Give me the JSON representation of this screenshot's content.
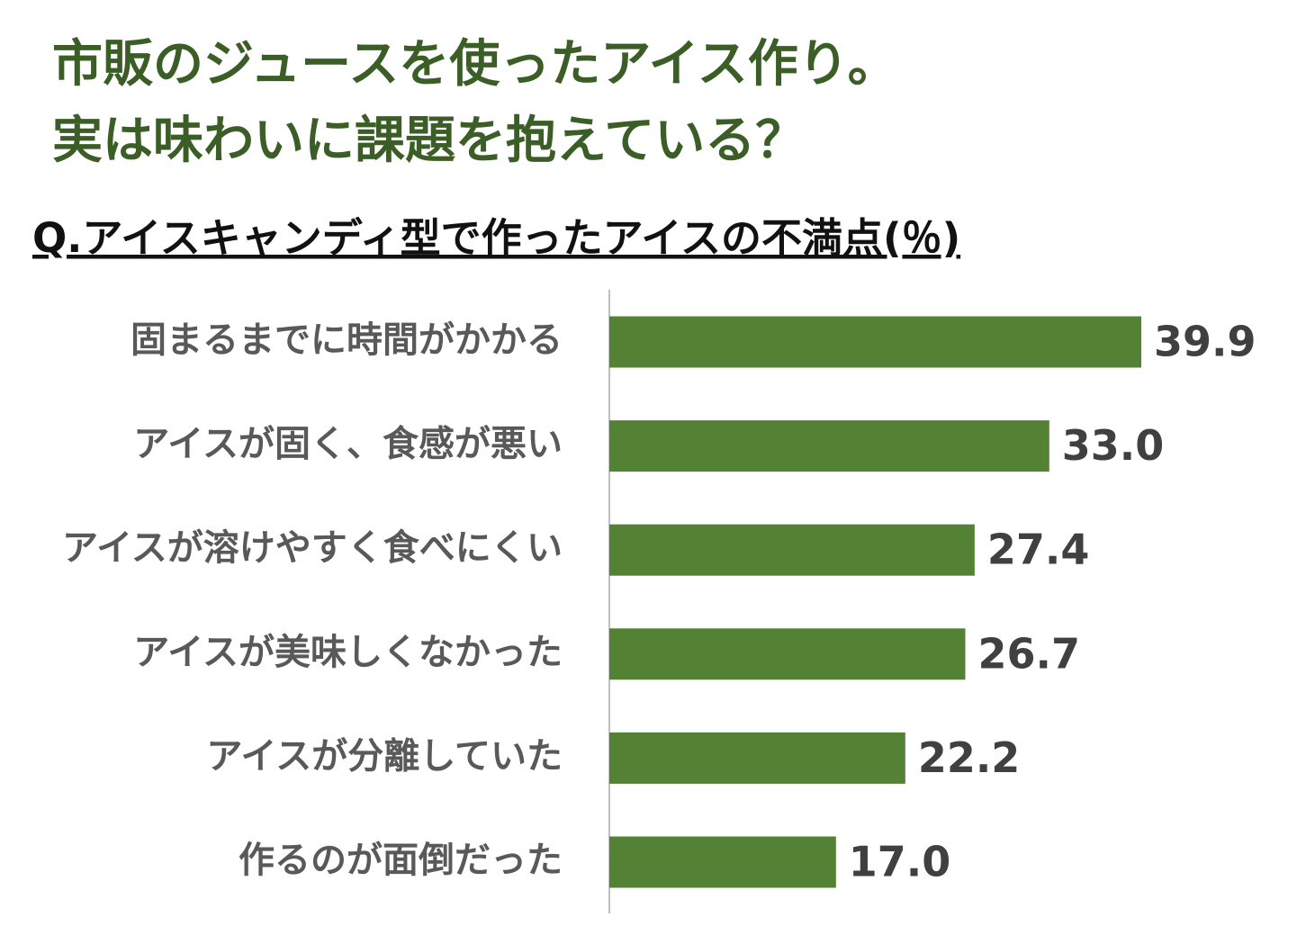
{
  "chart_data": {
    "type": "bar",
    "orientation": "horizontal",
    "title": [
      "市販のジュースを使ったアイス作り。",
      "実は味わいに課題を抱えている？"
    ],
    "subtitle": "Q.アイスキャンディ型で作ったアイスの不満点(％)",
    "categories": [
      "固まるまでに時間がかかる",
      "アイスが固く、食感が悪い",
      "アイスが溶けやすく食べにくい",
      "アイスが美味しくなかった",
      "アイスが分離していた",
      "作るのが面倒だった"
    ],
    "values": [
      39.9,
      33.0,
      27.4,
      26.7,
      22.2,
      17.0
    ],
    "value_labels": [
      "39.9",
      "33.0",
      "27.4",
      "26.7",
      "22.2",
      "17.0"
    ],
    "color": "#548235"
  }
}
